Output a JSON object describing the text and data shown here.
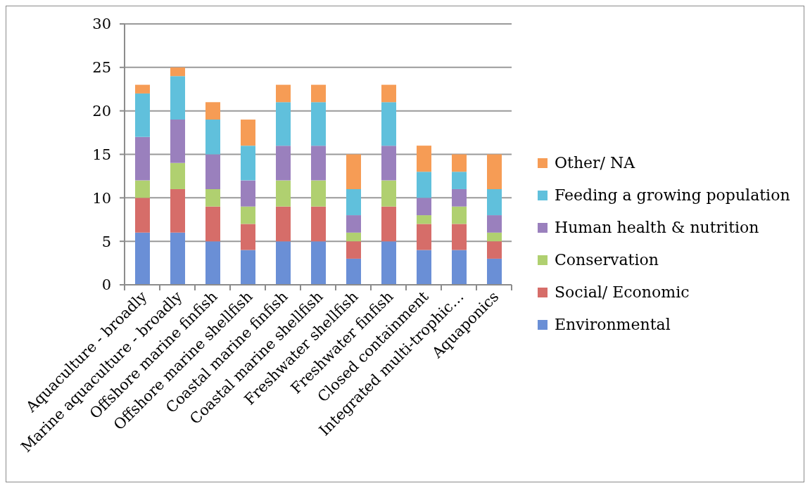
{
  "chart_data": {
    "type": "bar",
    "stacked": true,
    "categories": [
      "Aquaculture - broadly",
      "Marine aquaculture - broadly",
      "Offshore marine finfish",
      "Offshore marine shellfish",
      "Coastal marine finfish",
      "Coastal marine shellfish",
      "Freshwater shellfish",
      "Freshwater finfish",
      "Closed containment",
      "Integrated multi-trophic…",
      "Aquaponics"
    ],
    "series": [
      {
        "name": "Environmental",
        "color": "#6a8fd6",
        "values": [
          6,
          6,
          5,
          4,
          5,
          5,
          3,
          5,
          4,
          4,
          3
        ]
      },
      {
        "name": "Social/ Economic",
        "color": "#d66d69",
        "values": [
          4,
          5,
          4,
          3,
          4,
          4,
          2,
          4,
          3,
          3,
          2
        ]
      },
      {
        "name": "Conservation",
        "color": "#b0d070",
        "values": [
          2,
          3,
          2,
          2,
          3,
          3,
          1,
          3,
          1,
          2,
          1
        ]
      },
      {
        "name": "Human health & nutrition",
        "color": "#9a80bd",
        "values": [
          5,
          5,
          4,
          3,
          4,
          4,
          2,
          4,
          2,
          2,
          2
        ]
      },
      {
        "name": "Feeding a growing population",
        "color": "#60c0dc",
        "values": [
          5,
          5,
          4,
          4,
          5,
          5,
          3,
          5,
          3,
          2,
          3
        ]
      },
      {
        "name": "Other/ NA",
        "color": "#f69c55",
        "values": [
          1,
          1,
          2,
          3,
          2,
          2,
          4,
          2,
          3,
          2,
          4
        ]
      }
    ],
    "ylim": [
      0,
      30
    ],
    "yticks": [
      0,
      5,
      10,
      15,
      20,
      25,
      30
    ],
    "grid": "y",
    "legend": "right"
  }
}
